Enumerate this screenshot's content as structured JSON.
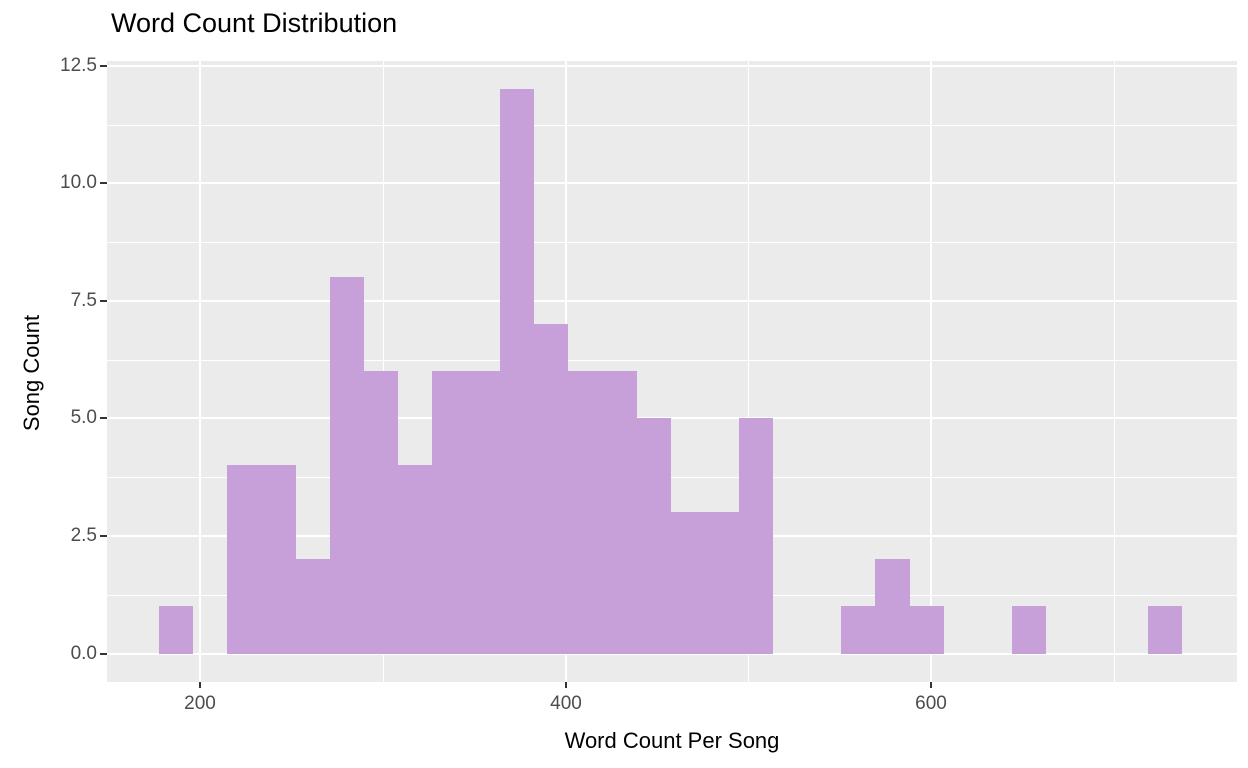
{
  "chart": {
    "title": "Word Count Distribution",
    "xlabel": "Word Count Per Song",
    "ylabel": "Song Count"
  },
  "chart_data": {
    "type": "bar",
    "subtype": "histogram",
    "title": "Word Count Distribution",
    "xlabel": "Word Count Per Song",
    "ylabel": "Song Count",
    "bin_edges": [
      177.7,
      196.3,
      215.0,
      233.6,
      252.3,
      271.0,
      289.6,
      308.3,
      326.9,
      345.6,
      364.2,
      382.9,
      401.5,
      420.2,
      438.9,
      457.5,
      476.2,
      494.8,
      513.5,
      532.1,
      550.8,
      569.4,
      588.1,
      606.8,
      625.4,
      644.1,
      662.7,
      681.4,
      700.0,
      718.7,
      737.3
    ],
    "counts": [
      1,
      0,
      4,
      4,
      2,
      8,
      6,
      4,
      6,
      6,
      12,
      7,
      6,
      6,
      5,
      3,
      3,
      5,
      0,
      0,
      1,
      2,
      1,
      0,
      0,
      1,
      0,
      0,
      0,
      1
    ],
    "x_ticks": [
      {
        "value": 200,
        "label": "200"
      },
      {
        "value": 400,
        "label": "400"
      },
      {
        "value": 600,
        "label": "600"
      }
    ],
    "y_ticks": [
      {
        "value": 0,
        "label": "0.0"
      },
      {
        "value": 2.5,
        "label": "2.5"
      },
      {
        "value": 5,
        "label": "5.0"
      },
      {
        "value": 7.5,
        "label": "7.5"
      },
      {
        "value": 10,
        "label": "10.0"
      },
      {
        "value": 12.5,
        "label": "12.5"
      }
    ],
    "x_minor_gridlines": [
      300,
      500,
      700
    ],
    "y_minor_gridlines": [
      1.25,
      3.75,
      6.25,
      8.75,
      11.25
    ],
    "xlim": [
      149,
      767
    ],
    "ylim": [
      -0.6,
      12.6
    ],
    "grid": true,
    "legend": "none",
    "bar_color": "#C79FD9",
    "panel_background": "#EBEBEB",
    "gridline_color": "#FFFFFF",
    "tick_text_color": "#4D4D4D",
    "axis_title_color": "#000000",
    "title_color": "#000000"
  }
}
